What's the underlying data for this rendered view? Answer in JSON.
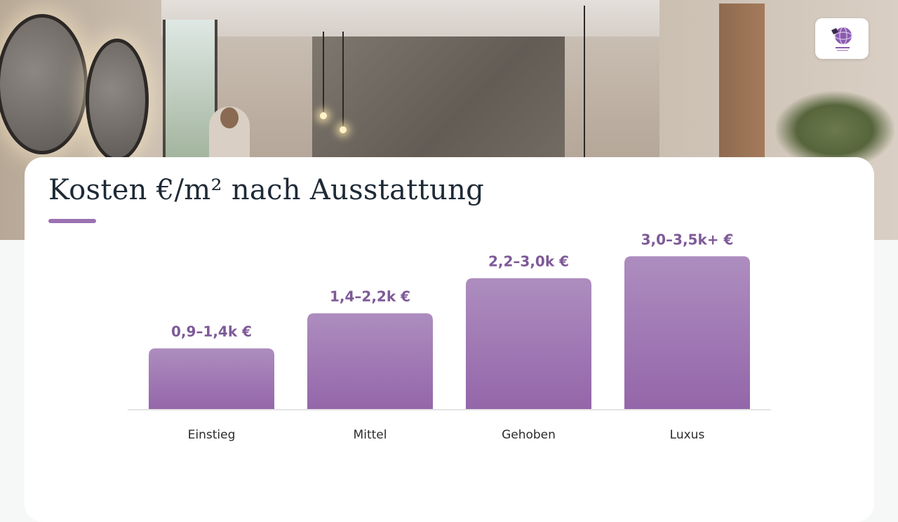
{
  "slide": {
    "title": "Kosten €/m² nach Ausstattung",
    "accent_color": "#9b71b2",
    "logo_icon": "globe-logo"
  },
  "chart_data": {
    "type": "bar",
    "title": "Kosten €/m² nach Ausstattung",
    "categories": [
      "Einstieg",
      "Mittel",
      "Gehoben",
      "Luxus"
    ],
    "values": [
      1.4,
      2.2,
      3.0,
      3.5
    ],
    "ranges": [
      [
        0.9,
        1.4
      ],
      [
        1.4,
        2.2
      ],
      [
        2.2,
        3.0
      ],
      [
        3.0,
        3.5
      ]
    ],
    "data_labels": [
      "0,9–1,4k €",
      "1,4–2,2k €",
      "2,2–3,0k €",
      "3,0–3,5k+ €"
    ],
    "ylim": [
      0,
      4.0
    ],
    "xlabel": "",
    "ylabel": "",
    "grid": false,
    "bar_color_top": "#ad8dbf",
    "bar_color_bottom": "#9466a9",
    "label_color": "#7e5a98"
  }
}
